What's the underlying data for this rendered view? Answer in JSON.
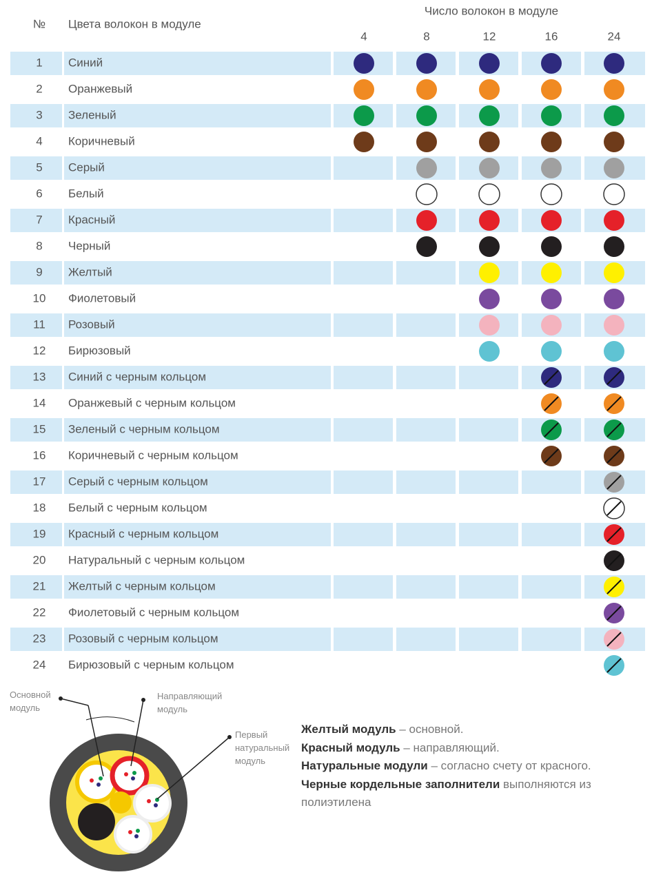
{
  "header": {
    "num": "№",
    "name": "Цвета волокон в модуле",
    "count_title": "Число волокон в модуле"
  },
  "table": {
    "columns": [
      4,
      8,
      12,
      16,
      24
    ],
    "rows": [
      {
        "num": 1,
        "name": "Синий",
        "color": "#2e2a7e",
        "ring": false
      },
      {
        "num": 2,
        "name": "Оранжевый",
        "color": "#f08a22",
        "ring": false
      },
      {
        "num": 3,
        "name": "Зеленый",
        "color": "#0c9a4a",
        "ring": false
      },
      {
        "num": 4,
        "name": "Коричневый",
        "color": "#6e3b1a",
        "ring": false
      },
      {
        "num": 5,
        "name": "Серый",
        "color": "#a0a0a0",
        "ring": false
      },
      {
        "num": 6,
        "name": "Белый",
        "color": "#ffffff",
        "ring": false
      },
      {
        "num": 7,
        "name": "Красный",
        "color": "#e52129",
        "ring": false
      },
      {
        "num": 8,
        "name": "Черный",
        "color": "#231f20",
        "ring": false
      },
      {
        "num": 9,
        "name": "Желтый",
        "color": "#fff000",
        "ring": false
      },
      {
        "num": 10,
        "name": "Фиолетовый",
        "color": "#7a4a9e",
        "ring": false
      },
      {
        "num": 11,
        "name": "Розовый",
        "color": "#f4b3be",
        "ring": false
      },
      {
        "num": 12,
        "name": "Бирюзовый",
        "color": "#5fc3d3",
        "ring": false
      },
      {
        "num": 13,
        "name": "Синий с черным кольцом",
        "color": "#2e2a7e",
        "ring": true
      },
      {
        "num": 14,
        "name": "Оранжевый с черным кольцом",
        "color": "#f08a22",
        "ring": true
      },
      {
        "num": 15,
        "name": "Зеленый с черным кольцом",
        "color": "#0c9a4a",
        "ring": true
      },
      {
        "num": 16,
        "name": "Коричневый с черным кольцом",
        "color": "#6e3b1a",
        "ring": true
      },
      {
        "num": 17,
        "name": "Серый с черным кольцом",
        "color": "#a0a0a0",
        "ring": true
      },
      {
        "num": 18,
        "name": "Белый с черным кольцом",
        "color": "#ffffff",
        "ring": true
      },
      {
        "num": 19,
        "name": "Красный с черным кольцом",
        "color": "#e52129",
        "ring": true
      },
      {
        "num": 20,
        "name": "Натуральный с черным кольцом",
        "color": "#231f20",
        "ring": true
      },
      {
        "num": 21,
        "name": "Желтый с черным кольцом",
        "color": "#fff000",
        "ring": true
      },
      {
        "num": 22,
        "name": "Фиолетовый с черным кольцом",
        "color": "#7a4a9e",
        "ring": true
      },
      {
        "num": 23,
        "name": "Розовый с черным кольцом",
        "color": "#f4b3be",
        "ring": true
      },
      {
        "num": 24,
        "name": "Бирюзовый с черным кольцом",
        "color": "#5fc3d3",
        "ring": true
      }
    ]
  },
  "diagram": {
    "labels": [
      "Основной модуль",
      "Направляющий модуль",
      "Первый натуральный модуль"
    ]
  },
  "legend": [
    {
      "bold": "Желтый модуль",
      "text": " – основной."
    },
    {
      "bold": "Красный модуль",
      "text": " – направляющий."
    },
    {
      "bold": "Натуральные модули",
      "text": " – согласно счету от красного."
    },
    {
      "bold": "Черные кордельные заполнители",
      "text": " выполняются из полиэтилена"
    }
  ]
}
